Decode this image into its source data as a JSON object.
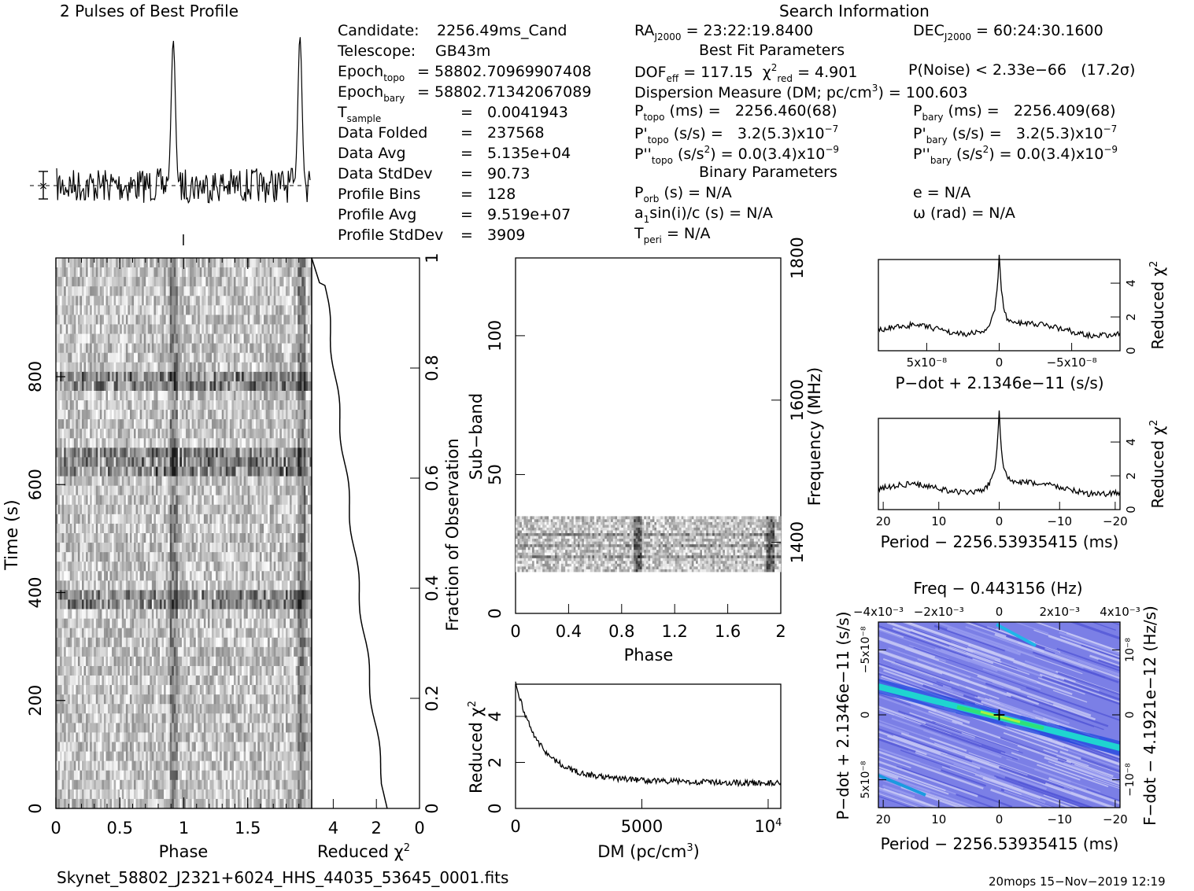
{
  "header": {
    "profile_title": "2 Pulses of Best Profile",
    "search_title": "Search Information",
    "best_fit_title": "Best Fit Parameters",
    "binary_title": "Binary Parameters"
  },
  "info_left": [
    {
      "key": "Candidate:",
      "val": "2256.49ms_Cand"
    },
    {
      "key": "Telescope:",
      "val": "GB43m"
    },
    {
      "key": "Epoch",
      "sub": "topo",
      "val": "= 58802.70969907408"
    },
    {
      "key": "Epoch",
      "sub": "bary",
      "val": "= 58802.71342067089"
    },
    {
      "key": "T",
      "sub": "sample",
      "val": "=   0.0041943"
    },
    {
      "key": "Data Folded",
      "val": "=   237568"
    },
    {
      "key": "Data Avg",
      "val": "=   5.135e+04"
    },
    {
      "key": "Data StdDev",
      "val": "=   90.73"
    },
    {
      "key": "Profile Bins",
      "val": "=   128"
    },
    {
      "key": "Profile Avg",
      "val": "=   9.519e+07"
    },
    {
      "key": "Profile StdDev",
      "val": "=   3909"
    }
  ],
  "info_mid": {
    "ra": "= 23:22:19.8400",
    "dof": "DOF",
    "dof_val": "= 117.15",
    "chi_val": "= 4.901",
    "pnoise": "P(Noise) < 2.33e−66   (17.2σ)",
    "dm_line": "Dispersion Measure (DM; pc/cm",
    "dm_val": ") = 100.603",
    "ptopo": "(ms) =   2256.460(68)",
    "pdtopo": "(s/s) =   3.2(5.3)x10",
    "pddtopo": "(s/s",
    "pddtopo_val": ") = 0.0(3.4)x10",
    "porb": "(s) = N/A",
    "a1": "a",
    "a1_rest": "sin(i)/c (s) = N/A",
    "tperi": "= N/A",
    "exp7": "−7",
    "exp9": "−9"
  },
  "info_right": {
    "dec": "= 60:24:30.1600",
    "pbary": "(ms) =   2256.409(68)",
    "pdbary": "(s/s) =   3.2(5.3)x10",
    "pddbary_val": ") = 0.0(3.4)x10",
    "e": "e = N/A",
    "omega": "ω (rad) = N/A"
  },
  "axes": {
    "time_label": "Time (s)",
    "phase_label": "Phase",
    "redchi_label": "Reduced χ",
    "fraction_label": "Fraction of Observation",
    "subband_label": "Sub−band",
    "freq_label": "Frequency (MHz)",
    "dm_label": "DM (pc/cm",
    "pdot_label": "P−dot + 2.1346e−11 (s/s)",
    "period_label": "Period − 2256.53935415 (ms)",
    "freq_top_label": "Freq − 0.443156 (Hz)",
    "fdot_label": "F−dot − 4.1921e−12 (Hz/s)",
    "pdot_side_label": "P−dot + 2.1346e−11 (s/s)"
  },
  "footer": {
    "filename": "Skynet_58802_J2321+6024_HHS_44035_53645_0001.fits",
    "stamp": "20mops 15−Nov−2019 12:19"
  },
  "chart_data": [
    {
      "type": "line",
      "title": "2 Pulses of Best Profile",
      "xlabel": "",
      "ylabel": "",
      "description_peaks": [
        0.92,
        1.92
      ],
      "x_range": [
        0,
        2
      ]
    },
    {
      "type": "heatmap",
      "name": "time-phase",
      "xlabel": "Phase",
      "ylabel": "Time (s)",
      "xlim": [
        0,
        2
      ],
      "ylim": [
        0,
        1000
      ],
      "xticks": [
        0,
        0.5,
        1,
        1.5
      ],
      "yticks": [
        0,
        200,
        400,
        600,
        800
      ]
    },
    {
      "type": "line",
      "name": "time-chi2",
      "xlabel": "Reduced χ2",
      "ylabel": "Fraction of Observation",
      "xlim": [
        5,
        0
      ],
      "ylim": [
        0,
        1
      ],
      "xticks": [
        4,
        2,
        0
      ],
      "yticks": [
        0,
        0.2,
        0.4,
        0.6,
        0.8,
        1
      ]
    },
    {
      "type": "heatmap",
      "name": "subband-phase",
      "xlabel": "Phase",
      "ylabel": "Sub−band",
      "xlim": [
        0,
        2
      ],
      "ylim": [
        0,
        128
      ],
      "xticks": [
        0,
        0.4,
        0.8,
        1.2,
        1.6,
        2
      ],
      "yticks": [
        0,
        50,
        100
      ],
      "freq_ticks": [
        1400,
        1600,
        1800
      ],
      "occupied_subbands": [
        15,
        35
      ]
    },
    {
      "type": "line",
      "name": "dm-chi2",
      "xlabel": "DM (pc/cm3)",
      "ylabel": "Reduced χ2",
      "xlim": [
        0,
        10500
      ],
      "ylim": [
        0,
        5.4
      ],
      "xticks": [
        0,
        5000,
        10000
      ],
      "yticks": [
        0,
        2,
        4
      ]
    },
    {
      "type": "line",
      "name": "pdot-chi2",
      "xlabel": "P−dot + 2.1346e−11 (s/s)",
      "ylabel": "Reduced χ2",
      "xticks": [
        "5x10−8",
        "0",
        "−5x10−8"
      ],
      "yticks": [
        0,
        2,
        4
      ],
      "ylim": [
        0,
        5.4
      ],
      "peak": [
        0,
        5.1
      ]
    },
    {
      "type": "line",
      "name": "period-chi2",
      "xlabel": "Period − 2256.53935415 (ms)",
      "ylabel": "Reduced χ2",
      "xlim": [
        20,
        -20
      ],
      "xticks": [
        20,
        10,
        0,
        -10,
        -20
      ],
      "ylim": [
        0,
        5.4
      ],
      "yticks": [
        0,
        2,
        4
      ],
      "peak": [
        0,
        5.1
      ]
    },
    {
      "type": "heatmap",
      "name": "period-pdot",
      "xlabel": "Period − 2256.53935415 (ms)",
      "ylabel": "P−dot + 2.1346e−11 (s/s)",
      "x2label": "Freq − 0.443156 (Hz)",
      "y2label": "F−dot − 4.1921e−12 (Hz/s)",
      "xlim": [
        20,
        -20
      ],
      "xticks": [
        20,
        10,
        0,
        -10,
        -20
      ],
      "x2ticks": [
        "−4x10−3",
        "−2x10−3",
        "0",
        "2x10−3",
        "4x10−3"
      ],
      "yticks": [
        "−5x10−8",
        "0",
        "5x10−8"
      ],
      "y2ticks": [
        "10−8",
        "0",
        "−10−8"
      ]
    }
  ]
}
